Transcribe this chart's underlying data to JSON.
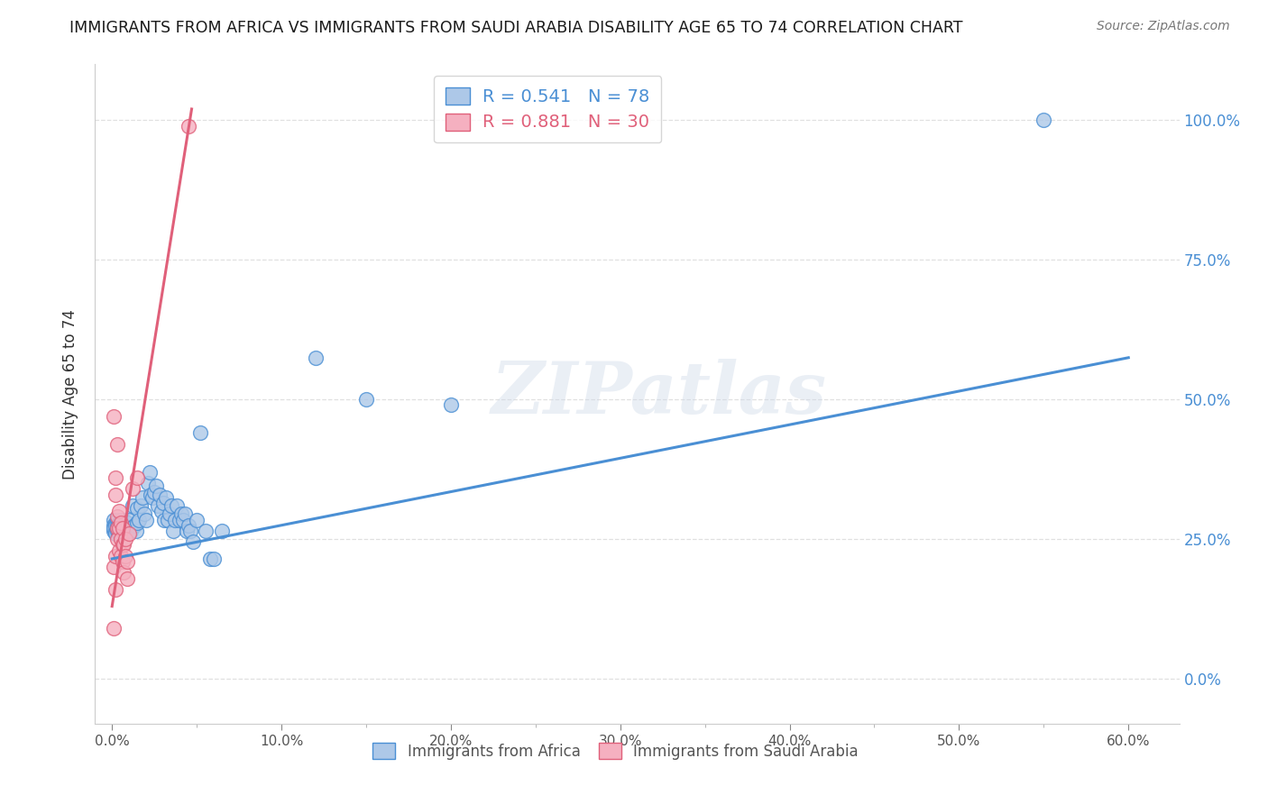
{
  "title": "IMMIGRANTS FROM AFRICA VS IMMIGRANTS FROM SAUDI ARABIA DISABILITY AGE 65 TO 74 CORRELATION CHART",
  "source": "Source: ZipAtlas.com",
  "xlabel_ticks": [
    "0.0%",
    "",
    "10.0%",
    "",
    "20.0%",
    "",
    "30.0%",
    "",
    "40.0%",
    "",
    "50.0%",
    "",
    "60.0%"
  ],
  "xlabel_vals": [
    0.0,
    0.05,
    0.1,
    0.15,
    0.2,
    0.25,
    0.3,
    0.35,
    0.4,
    0.45,
    0.5,
    0.55,
    0.6
  ],
  "xlabel_major_ticks": [
    "0.0%",
    "10.0%",
    "20.0%",
    "30.0%",
    "40.0%",
    "50.0%",
    "60.0%"
  ],
  "xlabel_major_vals": [
    0.0,
    0.1,
    0.2,
    0.3,
    0.4,
    0.5,
    0.6
  ],
  "ylabel": "Disability Age 65 to 74",
  "ylabel_ticks": [
    "0.0%",
    "25.0%",
    "50.0%",
    "75.0%",
    "100.0%"
  ],
  "ylabel_vals": [
    0.0,
    0.25,
    0.5,
    0.75,
    1.0
  ],
  "xlim": [
    -0.01,
    0.63
  ],
  "ylim": [
    -0.08,
    1.1
  ],
  "legend1_label": "R = 0.541   N = 78",
  "legend2_label": "R = 0.881   N = 30",
  "legend_label1": "Immigrants from Africa",
  "legend_label2": "Immigrants from Saudi Arabia",
  "watermark": "ZIPatlas",
  "blue_color": "#adc8e8",
  "pink_color": "#f5b0c0",
  "line_blue": "#4a8fd4",
  "line_pink": "#e0607a",
  "title_color": "#222222",
  "right_tick_color": "#4a8fd4",
  "grid_color": "#e0e0e0",
  "blue_scatter": [
    [
      0.001,
      0.285
    ],
    [
      0.001,
      0.275
    ],
    [
      0.001,
      0.265
    ],
    [
      0.001,
      0.27
    ],
    [
      0.002,
      0.28
    ],
    [
      0.002,
      0.265
    ],
    [
      0.002,
      0.275
    ],
    [
      0.002,
      0.26
    ],
    [
      0.003,
      0.285
    ],
    [
      0.003,
      0.275
    ],
    [
      0.003,
      0.265
    ],
    [
      0.003,
      0.27
    ],
    [
      0.004,
      0.28
    ],
    [
      0.004,
      0.265
    ],
    [
      0.004,
      0.275
    ],
    [
      0.004,
      0.26
    ],
    [
      0.005,
      0.285
    ],
    [
      0.005,
      0.275
    ],
    [
      0.005,
      0.265
    ],
    [
      0.005,
      0.27
    ],
    [
      0.006,
      0.28
    ],
    [
      0.006,
      0.265
    ],
    [
      0.006,
      0.275
    ],
    [
      0.007,
      0.285
    ],
    [
      0.007,
      0.265
    ],
    [
      0.008,
      0.265
    ],
    [
      0.008,
      0.28
    ],
    [
      0.009,
      0.28
    ],
    [
      0.009,
      0.265
    ],
    [
      0.01,
      0.285
    ],
    [
      0.01,
      0.27
    ],
    [
      0.011,
      0.265
    ],
    [
      0.012,
      0.31
    ],
    [
      0.013,
      0.275
    ],
    [
      0.014,
      0.265
    ],
    [
      0.015,
      0.28
    ],
    [
      0.015,
      0.305
    ],
    [
      0.016,
      0.285
    ],
    [
      0.017,
      0.31
    ],
    [
      0.018,
      0.325
    ],
    [
      0.019,
      0.295
    ],
    [
      0.02,
      0.285
    ],
    [
      0.021,
      0.35
    ],
    [
      0.022,
      0.37
    ],
    [
      0.023,
      0.33
    ],
    [
      0.024,
      0.325
    ],
    [
      0.025,
      0.335
    ],
    [
      0.026,
      0.345
    ],
    [
      0.027,
      0.31
    ],
    [
      0.028,
      0.33
    ],
    [
      0.029,
      0.3
    ],
    [
      0.03,
      0.315
    ],
    [
      0.031,
      0.285
    ],
    [
      0.032,
      0.325
    ],
    [
      0.033,
      0.285
    ],
    [
      0.034,
      0.295
    ],
    [
      0.035,
      0.31
    ],
    [
      0.036,
      0.265
    ],
    [
      0.037,
      0.285
    ],
    [
      0.038,
      0.31
    ],
    [
      0.04,
      0.285
    ],
    [
      0.041,
      0.295
    ],
    [
      0.042,
      0.285
    ],
    [
      0.043,
      0.295
    ],
    [
      0.044,
      0.265
    ],
    [
      0.045,
      0.275
    ],
    [
      0.046,
      0.265
    ],
    [
      0.048,
      0.245
    ],
    [
      0.05,
      0.285
    ],
    [
      0.052,
      0.44
    ],
    [
      0.055,
      0.265
    ],
    [
      0.058,
      0.215
    ],
    [
      0.06,
      0.215
    ],
    [
      0.065,
      0.265
    ],
    [
      0.15,
      0.5
    ],
    [
      0.2,
      0.49
    ],
    [
      0.12,
      0.575
    ],
    [
      0.55,
      1.0
    ]
  ],
  "pink_scatter": [
    [
      0.001,
      0.47
    ],
    [
      0.001,
      0.2
    ],
    [
      0.001,
      0.09
    ],
    [
      0.002,
      0.36
    ],
    [
      0.002,
      0.33
    ],
    [
      0.002,
      0.22
    ],
    [
      0.002,
      0.16
    ],
    [
      0.003,
      0.42
    ],
    [
      0.003,
      0.29
    ],
    [
      0.003,
      0.27
    ],
    [
      0.003,
      0.25
    ],
    [
      0.004,
      0.3
    ],
    [
      0.004,
      0.27
    ],
    [
      0.004,
      0.23
    ],
    [
      0.005,
      0.28
    ],
    [
      0.005,
      0.25
    ],
    [
      0.005,
      0.22
    ],
    [
      0.006,
      0.27
    ],
    [
      0.006,
      0.24
    ],
    [
      0.006,
      0.21
    ],
    [
      0.007,
      0.24
    ],
    [
      0.007,
      0.19
    ],
    [
      0.008,
      0.25
    ],
    [
      0.008,
      0.22
    ],
    [
      0.009,
      0.21
    ],
    [
      0.009,
      0.18
    ],
    [
      0.01,
      0.26
    ],
    [
      0.012,
      0.34
    ],
    [
      0.015,
      0.36
    ],
    [
      0.045,
      0.99
    ]
  ],
  "blue_line_x": [
    0.0,
    0.6
  ],
  "blue_line_y": [
    0.215,
    0.575
  ],
  "pink_line_x": [
    0.0,
    0.047
  ],
  "pink_line_y": [
    0.13,
    1.02
  ]
}
